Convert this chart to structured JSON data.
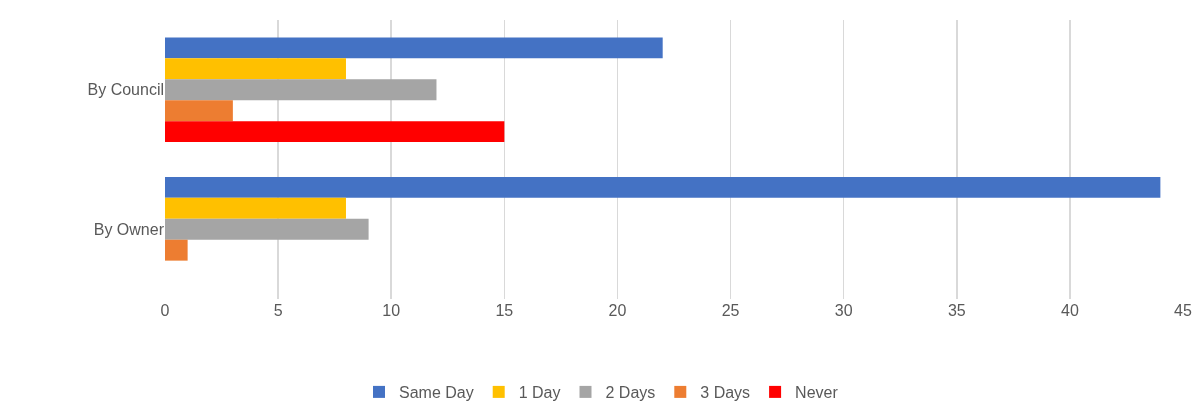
{
  "chart_data": {
    "type": "bar",
    "orientation": "horizontal",
    "categories": [
      "By Council",
      "By Owner"
    ],
    "series": [
      {
        "name": "Same Day",
        "color": "#4472c4",
        "values": [
          22,
          44
        ]
      },
      {
        "name": "1 Day",
        "color": "#ffc000",
        "values": [
          8,
          8
        ]
      },
      {
        "name": "2 Days",
        "color": "#a5a5a5",
        "values": [
          12,
          9
        ]
      },
      {
        "name": "3 Days",
        "color": "#ed7d31",
        "values": [
          3,
          1
        ]
      },
      {
        "name": "Never",
        "color": "#ff0000",
        "values": [
          15,
          null
        ]
      }
    ],
    "xlim": [
      0,
      45
    ],
    "xticks": [
      0,
      5,
      10,
      15,
      20,
      25,
      30,
      35,
      40,
      45
    ],
    "grid": "x",
    "legend": "bottom"
  }
}
